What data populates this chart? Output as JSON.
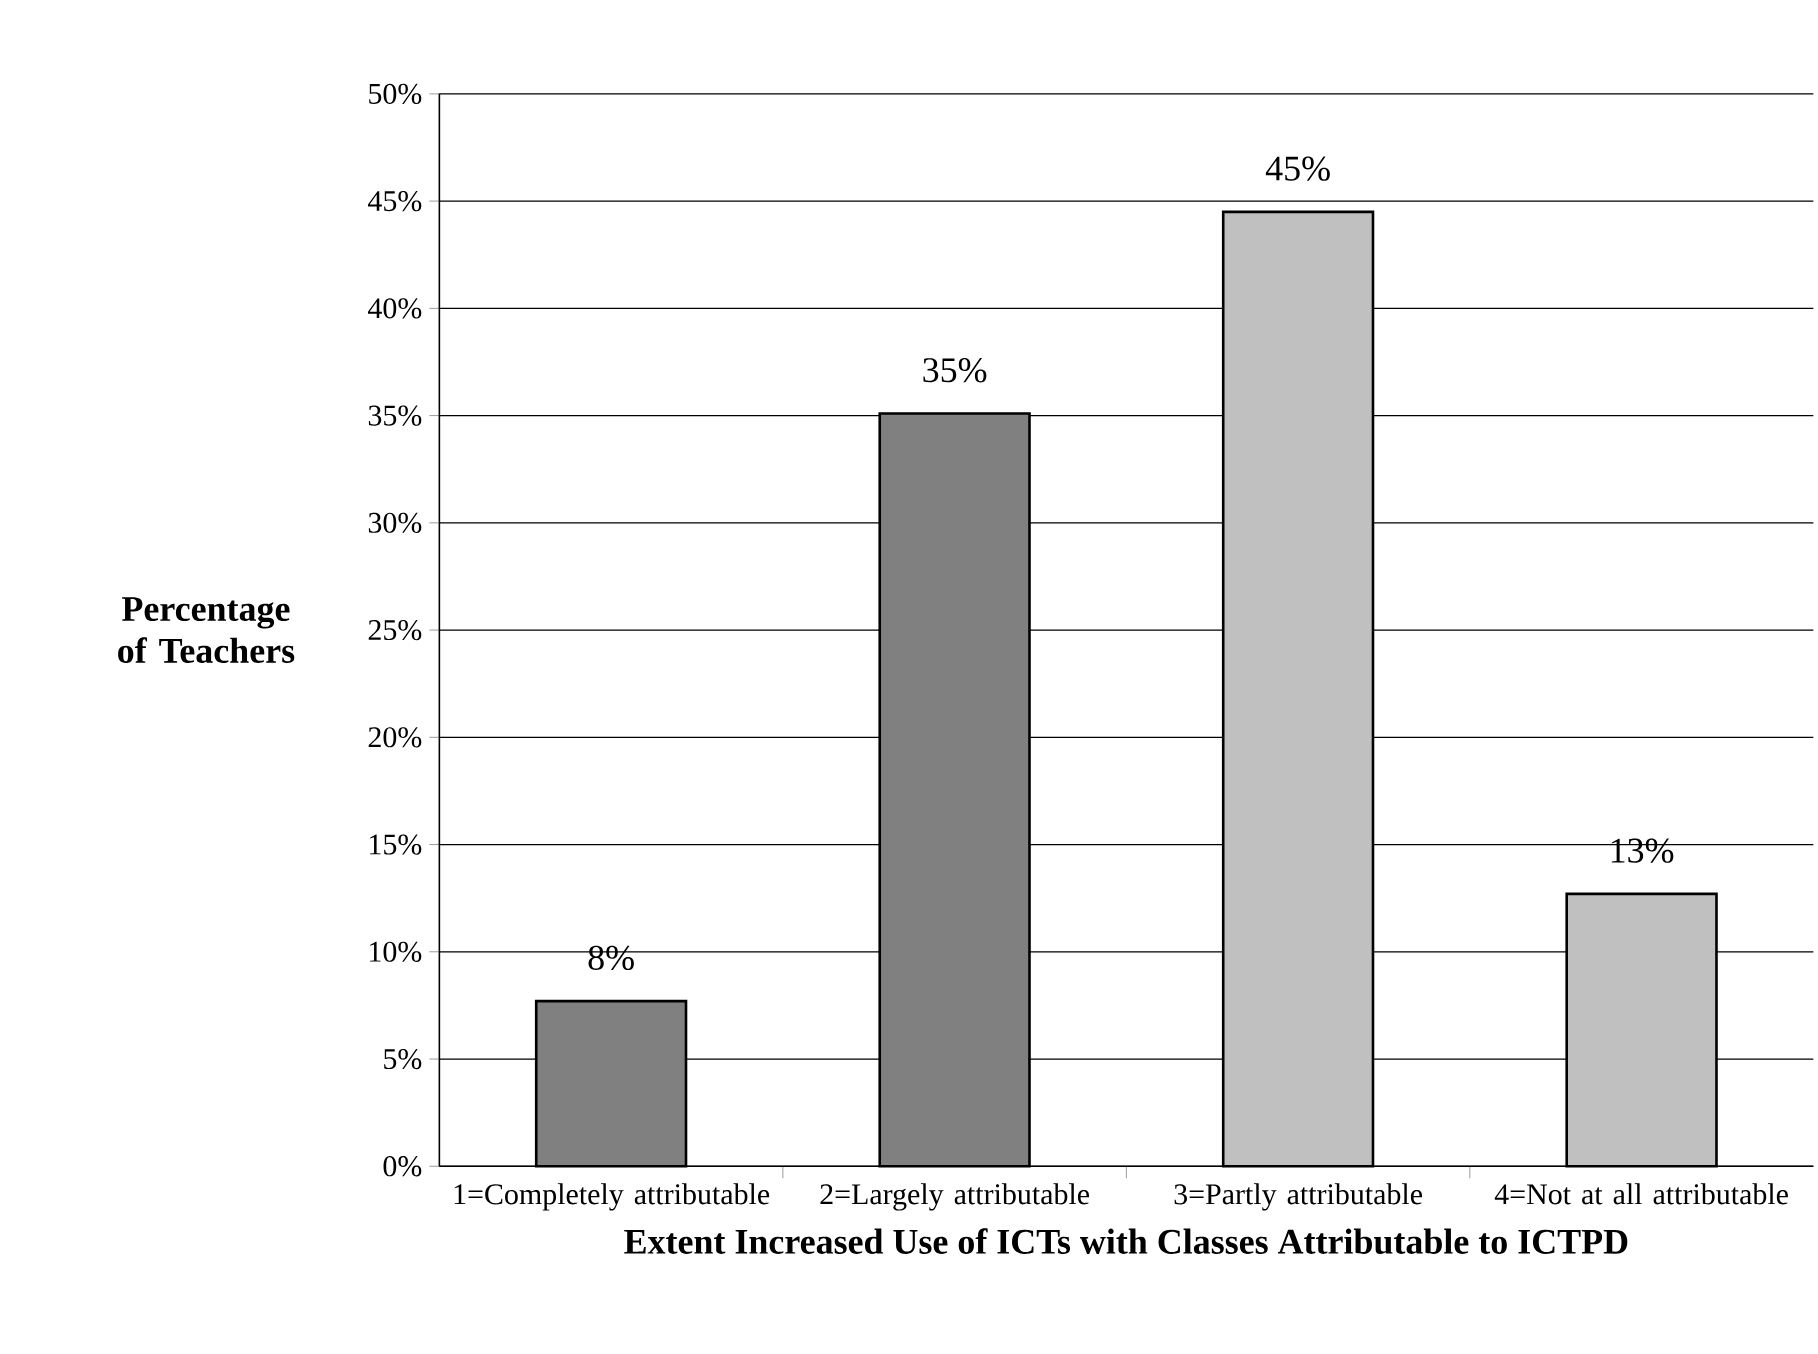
{
  "chart_data": {
    "type": "bar",
    "xlabel": "Extent Increased Use of ICTs with Classes Attributable to ICTPD",
    "ylabel": "Percentage of Teachers",
    "categories": [
      "1=Completely attributable",
      "2=Largely attributable",
      "3=Partly attributable",
      "4=Not at all attributable"
    ],
    "values": [
      7.7,
      35.1,
      44.5,
      12.7
    ],
    "value_labels": [
      "8%",
      "35%",
      "45%",
      "13%"
    ],
    "colors": [
      "#808080",
      "#808080",
      "#c0c0c0",
      "#c0c0c0"
    ],
    "ylim": [
      0,
      50
    ],
    "yticks": [
      {
        "value": 0,
        "label": "0%"
      },
      {
        "value": 5,
        "label": "5%"
      },
      {
        "value": 10,
        "label": "10%"
      },
      {
        "value": 15,
        "label": "15%"
      },
      {
        "value": 20,
        "label": "20%"
      },
      {
        "value": 25,
        "label": "25%"
      },
      {
        "value": 30,
        "label": "30%"
      },
      {
        "value": 35,
        "label": "35%"
      },
      {
        "value": 40,
        "label": "40%"
      },
      {
        "value": 45,
        "label": "45%"
      },
      {
        "value": 50,
        "label": "50%"
      }
    ],
    "grid": "y"
  }
}
